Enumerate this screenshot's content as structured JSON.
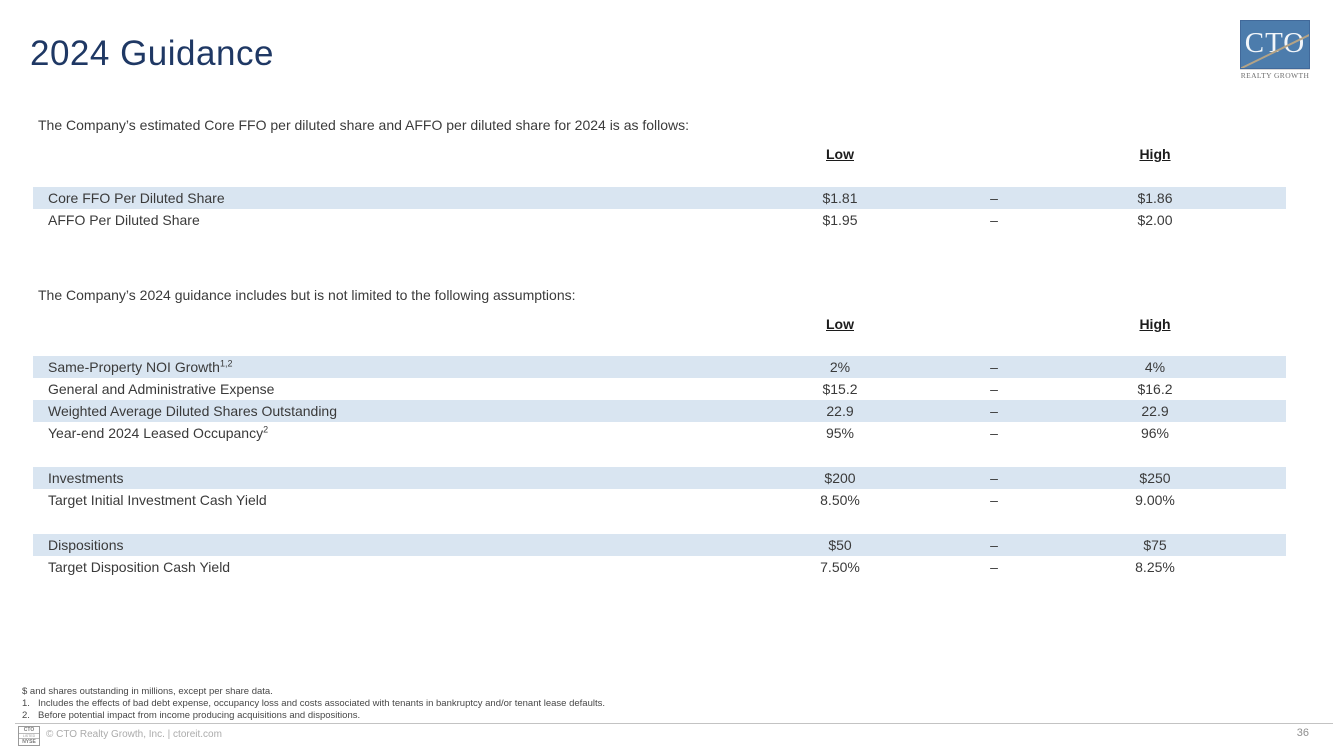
{
  "title": "2024 Guidance",
  "logo": {
    "acronym": "CTO",
    "subtitle": "REALTY GROWTH"
  },
  "intro_ffo": "The Company’s estimated Core FFO per diluted share and AFFO per diluted share for 2024 is as follows:",
  "intro_assumptions": "The Company’s 2024 guidance includes but is not limited to the following assumptions:",
  "range_headers": {
    "low": "Low",
    "high": "High"
  },
  "ffo_table": {
    "rows": [
      {
        "label": "Core FFO Per Diluted Share",
        "sup": "",
        "low": "$1.81",
        "dash": "–",
        "high": "$1.86",
        "shaded": true
      },
      {
        "label": "AFFO Per Diluted Share",
        "sup": "",
        "low": "$1.95",
        "dash": "–",
        "high": "$2.00",
        "shaded": false
      }
    ]
  },
  "assumptions_table": {
    "rows": [
      {
        "label": "Same-Property NOI Growth",
        "sup": "1,2",
        "low": "2%",
        "dash": "–",
        "high": "4%",
        "shaded": true
      },
      {
        "label": "General and Administrative Expense",
        "sup": "",
        "low": "$15.2",
        "dash": "–",
        "high": "$16.2",
        "shaded": false
      },
      {
        "label": "Weighted Average Diluted Shares Outstanding",
        "sup": "",
        "low": "22.9",
        "dash": "–",
        "high": "22.9",
        "shaded": true
      },
      {
        "label": "Year-end 2024 Leased Occupancy",
        "sup": "2",
        "low": "95%",
        "dash": "–",
        "high": "96%",
        "shaded": false
      },
      {
        "spacer": true
      },
      {
        "label": "Investments",
        "sup": "",
        "low": "$200",
        "dash": "–",
        "high": "$250",
        "shaded": true
      },
      {
        "label": "Target Initial Investment Cash Yield",
        "sup": "",
        "low": "8.50%",
        "dash": "–",
        "high": "9.00%",
        "shaded": false
      },
      {
        "spacer": true
      },
      {
        "label": "Dispositions",
        "sup": "",
        "low": "$50",
        "dash": "–",
        "high": "$75",
        "shaded": true
      },
      {
        "label": "Target Disposition Cash Yield",
        "sup": "",
        "low": "7.50%",
        "dash": "–",
        "high": "8.25%",
        "shaded": false
      }
    ]
  },
  "footnotes": [
    {
      "num": "",
      "text": "$ and shares outstanding in millions, except per share data."
    },
    {
      "num": "1.",
      "text": "Includes the effects of bad debt expense, occupancy loss and costs associated with tenants in bankruptcy and/or tenant lease defaults."
    },
    {
      "num": "2.",
      "text": "Before potential impact from income producing acquisitions and dispositions."
    }
  ],
  "footer": {
    "badge": {
      "line1": "CTO",
      "line2": "LISTED",
      "line3": "NYSE"
    },
    "copyright": "© CTO Realty Growth, Inc. | ctoreit.com",
    "page_number": "36"
  },
  "colors": {
    "title_navy": "#1F3864",
    "row_shade": "#D9E5F1",
    "logo_blue": "#4C7CAC",
    "logo_gold": "#B4A386"
  }
}
